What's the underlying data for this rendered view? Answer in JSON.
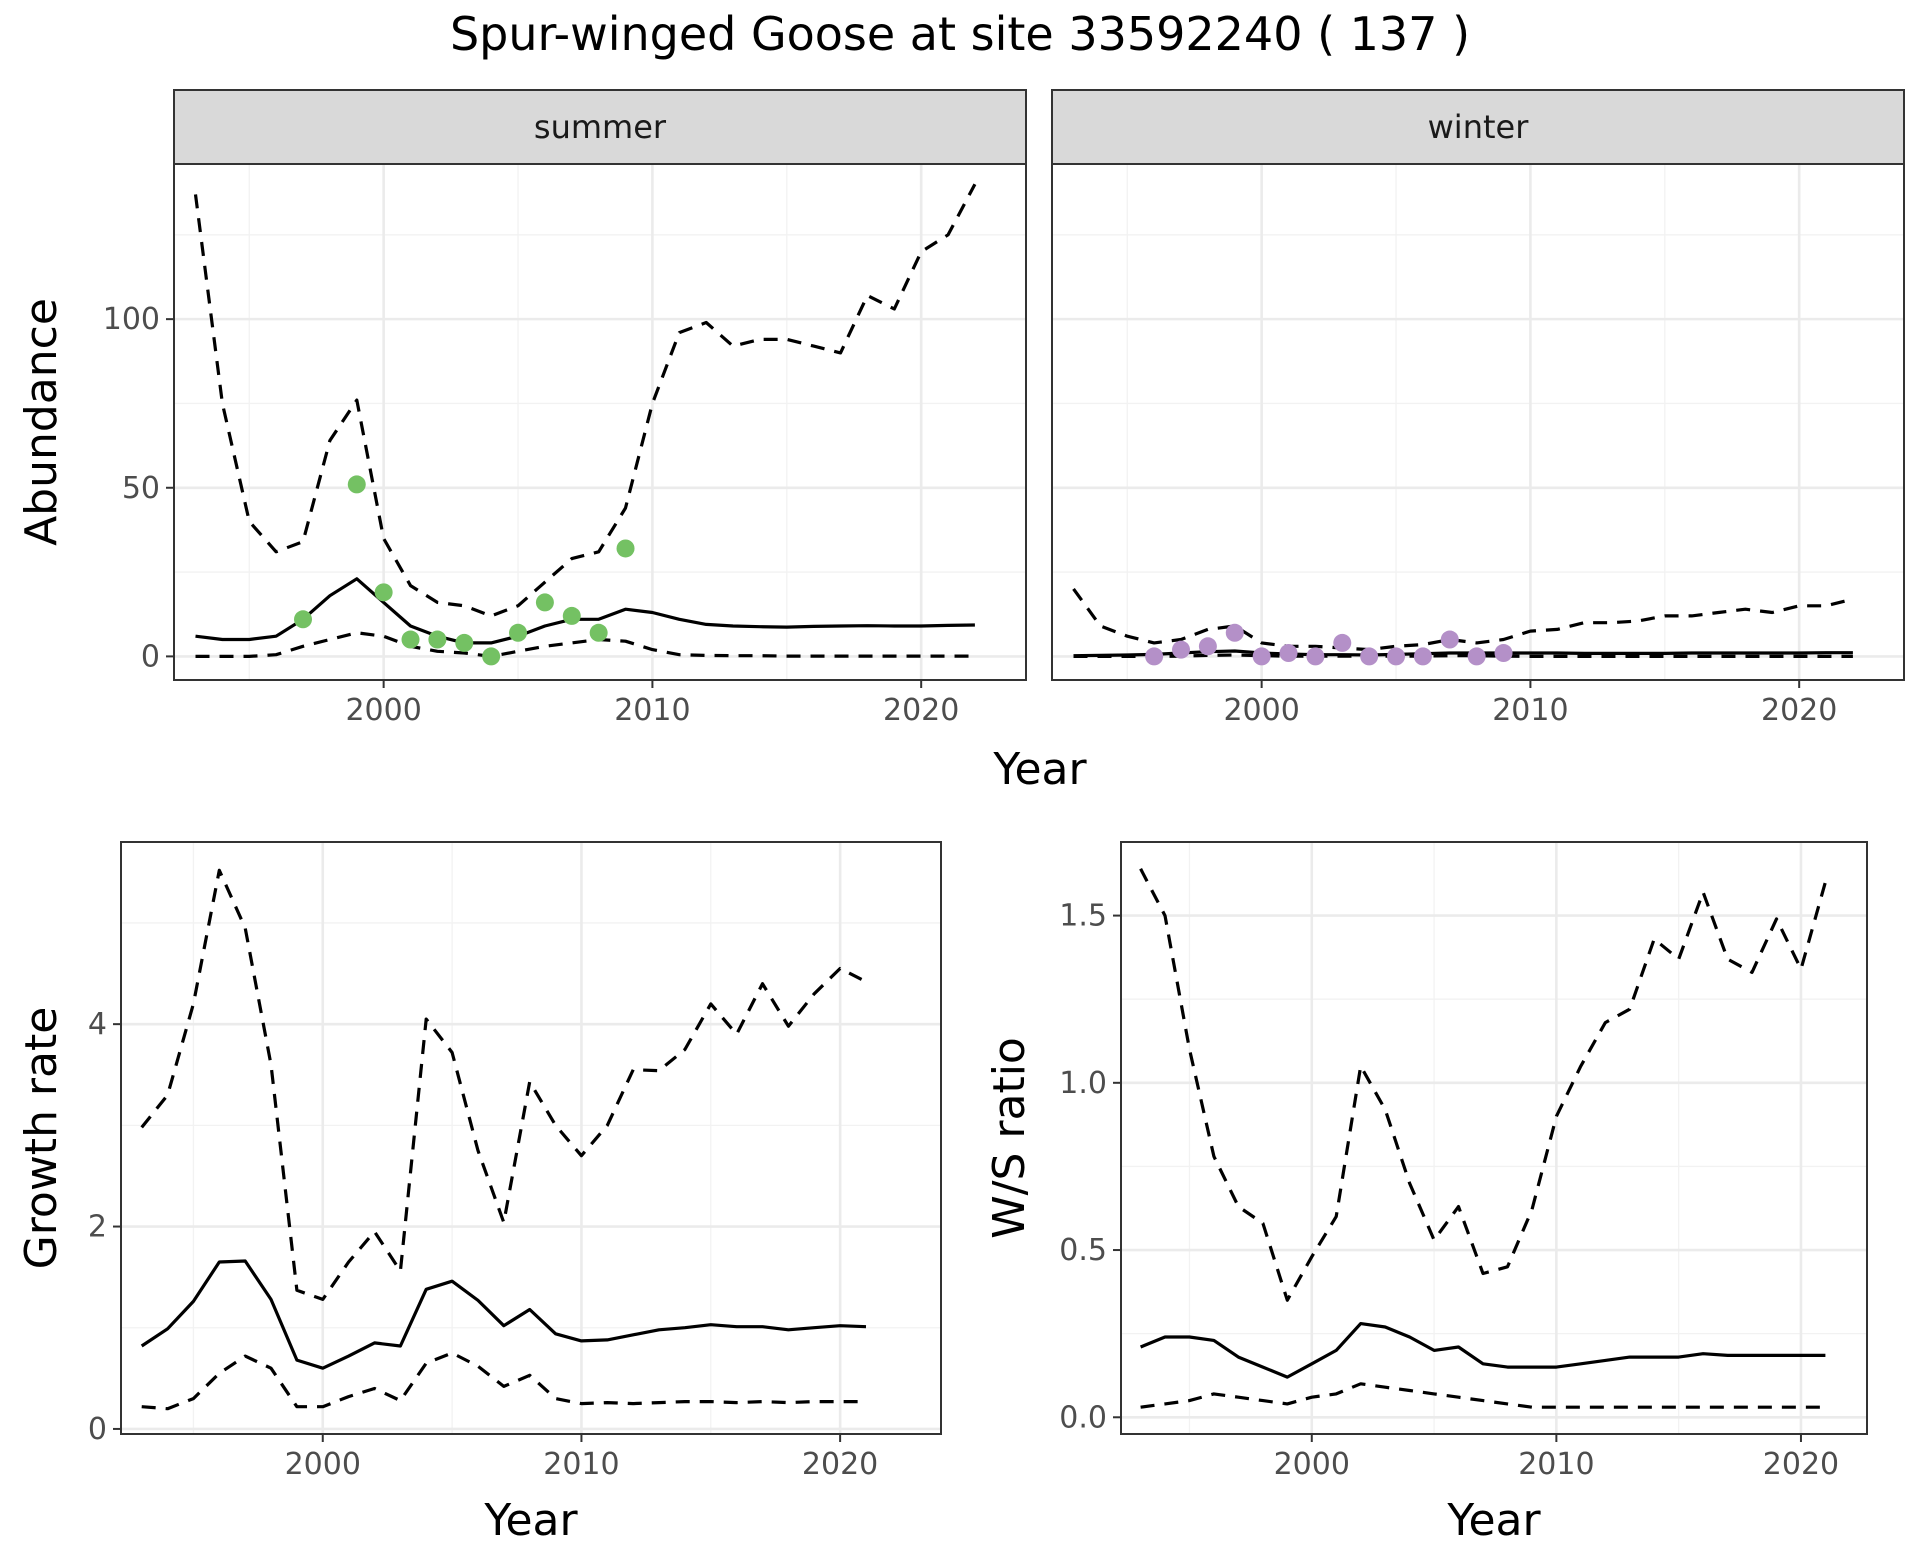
{
  "title": "Spur-winged Goose at site 33592240 ( 137 )",
  "chart_data": [
    {
      "id": "summer",
      "type": "line",
      "strip": "summer",
      "ylabel": "Abundance",
      "xlim": [
        1992.2,
        2023.9
      ],
      "ylim": [
        -7,
        146
      ],
      "x_ticks": [
        2000,
        2010,
        2020
      ],
      "y_ticks": [
        0,
        50,
        100
      ],
      "x_tick_labels": [
        "2000",
        "2010",
        "2020"
      ],
      "y_tick_labels": [
        "0",
        "50",
        "100"
      ],
      "mean": {
        "x": [
          1993,
          1994,
          1995,
          1996,
          1997,
          1998,
          1999,
          2000,
          2001,
          2002,
          2003,
          2004,
          2005,
          2006,
          2007,
          2008,
          2009,
          2010,
          2011,
          2012,
          2013,
          2014,
          2015,
          2016,
          2017,
          2018,
          2019,
          2020,
          2021,
          2022
        ],
        "y": [
          6,
          5,
          5,
          6,
          11,
          18,
          23,
          16,
          9,
          6,
          4,
          4,
          6,
          9,
          11,
          11,
          14,
          13,
          11,
          9.5,
          9,
          8.8,
          8.7,
          8.9,
          9,
          9.1,
          9,
          9,
          9.2,
          9.3
        ]
      },
      "upper": {
        "x": [
          1993,
          1994,
          1995,
          1996,
          1997,
          1998,
          1999,
          2000,
          2001,
          2002,
          2003,
          2004,
          2005,
          2006,
          2007,
          2008,
          2009,
          2010,
          2011,
          2012,
          2013,
          2014,
          2015,
          2016,
          2017,
          2018,
          2019,
          2020,
          2021,
          2022
        ],
        "y": [
          137,
          75,
          40,
          31,
          34,
          64,
          76,
          35,
          21,
          16,
          15,
          12,
          15,
          22,
          29,
          31,
          44,
          75,
          96,
          99,
          92,
          94,
          94,
          92,
          90,
          107,
          103,
          120,
          125,
          140
        ]
      },
      "lower": {
        "x": [
          1993,
          1994,
          1995,
          1996,
          1997,
          1998,
          1999,
          2000,
          2001,
          2002,
          2003,
          2004,
          2005,
          2006,
          2007,
          2008,
          2009,
          2010,
          2011,
          2012,
          2013,
          2014,
          2015,
          2016,
          2017,
          2018,
          2019,
          2020,
          2021,
          2022
        ],
        "y": [
          0,
          0,
          0,
          0.5,
          3,
          5,
          7,
          6,
          3,
          1.5,
          1,
          0,
          1.5,
          3,
          4,
          5,
          4.5,
          2,
          0.5,
          0.3,
          0.2,
          0.2,
          0.1,
          0.1,
          0.1,
          0.1,
          0.1,
          0.1,
          0.1,
          0.1
        ]
      },
      "points": {
        "color": "#74c163",
        "x": [
          1997,
          1999,
          2000,
          2001,
          2002,
          2003,
          2004,
          2005,
          2006,
          2007,
          2008,
          2009
        ],
        "y": [
          11,
          51,
          19,
          5,
          5,
          4,
          0,
          7,
          16,
          12,
          7,
          32
        ]
      }
    },
    {
      "id": "winter",
      "type": "line",
      "strip": "winter",
      "ylabel": "",
      "xlim": [
        1992.2,
        2023.9
      ],
      "ylim": [
        -7,
        146
      ],
      "x_ticks": [
        2000,
        2010,
        2020
      ],
      "y_ticks": [
        0,
        50,
        100
      ],
      "x_tick_labels": [
        "2000",
        "2010",
        "2020"
      ],
      "y_tick_labels": [],
      "mean": {
        "x": [
          1993,
          1994,
          1995,
          1996,
          1997,
          1998,
          1999,
          2000,
          2001,
          2002,
          2003,
          2004,
          2005,
          2006,
          2007,
          2008,
          2009,
          2010,
          2011,
          2012,
          2013,
          2014,
          2015,
          2016,
          2017,
          2018,
          2019,
          2020,
          2021,
          2022
        ],
        "y": [
          0.2,
          0.3,
          0.4,
          0.6,
          1,
          1.4,
          1.6,
          1,
          0.7,
          0.5,
          0.5,
          0.4,
          0.6,
          0.8,
          1,
          1,
          1,
          1,
          1,
          0.9,
          0.9,
          0.9,
          0.9,
          1,
          1,
          1,
          1,
          1,
          1.1,
          1.1
        ]
      },
      "upper": {
        "x": [
          1993,
          1994,
          1995,
          1996,
          1997,
          1998,
          1999,
          2000,
          2001,
          2002,
          2003,
          2004,
          2005,
          2006,
          2007,
          2008,
          2009,
          2010,
          2011,
          2012,
          2013,
          2014,
          2015,
          2016,
          2017,
          2018,
          2019,
          2020,
          2021,
          2022
        ],
        "y": [
          20,
          9,
          6,
          4,
          5,
          8,
          9,
          4,
          3,
          3,
          2.5,
          2,
          3,
          3.5,
          5,
          4,
          5,
          7.5,
          8,
          10,
          10,
          10.5,
          12,
          12,
          13,
          14,
          13,
          15,
          15,
          17
        ]
      },
      "lower": {
        "x": [
          1993,
          1994,
          1995,
          1996,
          1997,
          1998,
          1999,
          2000,
          2001,
          2002,
          2003,
          2004,
          2005,
          2006,
          2007,
          2008,
          2009,
          2010,
          2011,
          2012,
          2013,
          2014,
          2015,
          2016,
          2017,
          2018,
          2019,
          2020,
          2021,
          2022
        ],
        "y": [
          0,
          0,
          0,
          0,
          0.1,
          0.3,
          0.4,
          0.2,
          0.1,
          0.1,
          0.1,
          0.1,
          0.1,
          0.1,
          0.2,
          0.2,
          0.1,
          0,
          0,
          0,
          0,
          0,
          0,
          0,
          0,
          0,
          0,
          0,
          0,
          0
        ]
      },
      "points": {
        "color": "#b490c8",
        "x": [
          1996,
          1997,
          1998,
          1999,
          2000,
          2001,
          2002,
          2003,
          2004,
          2005,
          2006,
          2007,
          2008,
          2009
        ],
        "y": [
          0,
          2,
          3,
          7,
          0,
          1,
          0,
          4,
          0,
          0,
          0,
          5,
          0,
          1
        ]
      }
    },
    {
      "id": "growth",
      "type": "line",
      "ylabel": "Growth rate",
      "xlabel": "Year",
      "xlim": [
        1992.2,
        2023.9
      ],
      "ylim": [
        -0.05,
        5.8
      ],
      "x_ticks": [
        2000,
        2010,
        2020
      ],
      "y_ticks": [
        0,
        2,
        4
      ],
      "x_tick_labels": [
        "2000",
        "2010",
        "2020"
      ],
      "y_tick_labels": [
        "0",
        "2",
        "4"
      ],
      "mean": {
        "x": [
          1993,
          1994,
          1995,
          1996,
          1997,
          1998,
          1999,
          2000,
          2001,
          2002,
          2003,
          2004,
          2005,
          2006,
          2007,
          2008,
          2009,
          2010,
          2011,
          2012,
          2013,
          2014,
          2015,
          2016,
          2017,
          2018,
          2019,
          2020,
          2021
        ],
        "y": [
          0.82,
          0.99,
          1.26,
          1.65,
          1.66,
          1.28,
          0.68,
          0.6,
          0.72,
          0.85,
          0.82,
          1.38,
          1.46,
          1.27,
          1.02,
          1.18,
          0.94,
          0.87,
          0.88,
          0.93,
          0.98,
          1,
          1.03,
          1.01,
          1.01,
          0.98,
          1,
          1.02,
          1.01
        ]
      },
      "upper": {
        "x": [
          1993,
          1994,
          1995,
          1996,
          1997,
          1998,
          1999,
          2000,
          2001,
          2002,
          2003,
          2004,
          2005,
          2006,
          2007,
          2008,
          2009,
          2010,
          2011,
          2012,
          2013,
          2014,
          2015,
          2016,
          2017,
          2018,
          2019,
          2020,
          2021
        ],
        "y": [
          2.98,
          3.3,
          4.2,
          5.52,
          4.95,
          3.6,
          1.37,
          1.28,
          1.65,
          1.95,
          1.56,
          4.05,
          3.72,
          2.75,
          2.04,
          3.43,
          3,
          2.7,
          3,
          3.55,
          3.54,
          3.75,
          4.2,
          3.9,
          4.4,
          3.98,
          4.3,
          4.55,
          4.42
        ]
      },
      "lower": {
        "x": [
          1993,
          1994,
          1995,
          1996,
          1997,
          1998,
          1999,
          2000,
          2001,
          2002,
          2003,
          2004,
          2005,
          2006,
          2007,
          2008,
          2009,
          2010,
          2011,
          2012,
          2013,
          2014,
          2015,
          2016,
          2017,
          2018,
          2019,
          2020,
          2021
        ],
        "y": [
          0.22,
          0.2,
          0.3,
          0.55,
          0.72,
          0.6,
          0.22,
          0.22,
          0.32,
          0.4,
          0.28,
          0.65,
          0.75,
          0.62,
          0.42,
          0.53,
          0.3,
          0.25,
          0.26,
          0.25,
          0.26,
          0.27,
          0.27,
          0.26,
          0.27,
          0.26,
          0.27,
          0.27,
          0.27
        ]
      }
    },
    {
      "id": "ratio",
      "type": "line",
      "ylabel": "W/S ratio",
      "xlabel": "Year",
      "xlim": [
        1992.2,
        2022.7
      ],
      "ylim": [
        -0.05,
        1.72
      ],
      "x_ticks": [
        2000,
        2010,
        2020
      ],
      "y_ticks": [
        0.0,
        0.5,
        1.0,
        1.5
      ],
      "x_tick_labels": [
        "2000",
        "2010",
        "2020"
      ],
      "y_tick_labels": [
        "0.0",
        "0.5",
        "1.0",
        "1.5"
      ],
      "mean": {
        "x": [
          1993,
          1994,
          1995,
          1996,
          1997,
          1998,
          1999,
          2000,
          2001,
          2002,
          2003,
          2004,
          2005,
          2006,
          2007,
          2008,
          2009,
          2010,
          2011,
          2012,
          2013,
          2014,
          2015,
          2016,
          2017,
          2018,
          2019,
          2020,
          2021
        ],
        "y": [
          0.21,
          0.24,
          0.24,
          0.23,
          0.18,
          0.15,
          0.12,
          0.16,
          0.2,
          0.28,
          0.27,
          0.24,
          0.2,
          0.21,
          0.16,
          0.15,
          0.15,
          0.15,
          0.16,
          0.17,
          0.18,
          0.18,
          0.18,
          0.19,
          0.185,
          0.185,
          0.185,
          0.185,
          0.185
        ]
      },
      "upper": {
        "x": [
          1993,
          1994,
          1995,
          1996,
          1997,
          1998,
          1999,
          2000,
          2001,
          2002,
          2003,
          2004,
          2005,
          2006,
          2007,
          2008,
          2009,
          2010,
          2011,
          2012,
          2013,
          2014,
          2015,
          2016,
          2017,
          2018,
          2019,
          2020,
          2021
        ],
        "y": [
          1.64,
          1.5,
          1.1,
          0.78,
          0.63,
          0.58,
          0.35,
          0.48,
          0.6,
          1.05,
          0.92,
          0.7,
          0.53,
          0.63,
          0.43,
          0.45,
          0.62,
          0.9,
          1.05,
          1.18,
          1.22,
          1.43,
          1.37,
          1.57,
          1.37,
          1.33,
          1.49,
          1.34,
          1.6
        ]
      },
      "lower": {
        "x": [
          1993,
          1994,
          1995,
          1996,
          1997,
          1998,
          1999,
          2000,
          2001,
          2002,
          2003,
          2004,
          2005,
          2006,
          2007,
          2008,
          2009,
          2010,
          2011,
          2012,
          2013,
          2014,
          2015,
          2016,
          2017,
          2018,
          2019,
          2020,
          2021
        ],
        "y": [
          0.03,
          0.04,
          0.05,
          0.07,
          0.06,
          0.05,
          0.04,
          0.06,
          0.07,
          0.1,
          0.09,
          0.08,
          0.07,
          0.06,
          0.05,
          0.04,
          0.03,
          0.03,
          0.03,
          0.03,
          0.03,
          0.03,
          0.03,
          0.03,
          0.03,
          0.03,
          0.03,
          0.03,
          0.03
        ]
      }
    }
  ],
  "shared_xlabel_top": "Year"
}
